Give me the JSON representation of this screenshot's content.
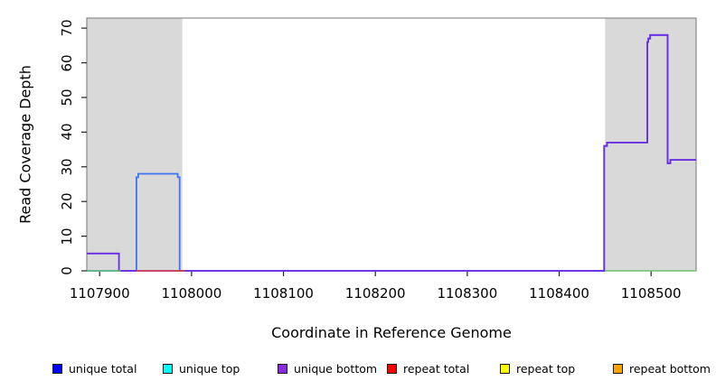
{
  "chart_data": {
    "type": "line",
    "title": "",
    "xlabel": "Coordinate in Reference Genome",
    "ylabel": "Read Coverage Depth",
    "xlim": [
      1107886,
      1108549
    ],
    "ylim": [
      0,
      72.9
    ],
    "x_ticks": [
      1107900,
      1108000,
      1108100,
      1108200,
      1108300,
      1108400,
      1108500
    ],
    "y_ticks": [
      0,
      10,
      20,
      30,
      40,
      50,
      60,
      70
    ],
    "grid": false,
    "frame_color": "#777777",
    "shaded_region_color": "#d9d9d9",
    "shaded_regions": [
      {
        "x0": 1107886,
        "x1": 1107990
      },
      {
        "x0": 1108450,
        "x1": 1108549
      }
    ],
    "series": [
      {
        "name": "unique total",
        "color": "#3e74f0",
        "width": 1.8,
        "segments": [
          [
            [
              1107886,
              0
            ],
            [
              1107940,
              0
            ],
            [
              1107940,
              27
            ],
            [
              1107942,
              27
            ],
            [
              1107942,
              28
            ],
            [
              1107985,
              28
            ],
            [
              1107985,
              27
            ],
            [
              1107987,
              27
            ],
            [
              1107987,
              0
            ],
            [
              1108449,
              0
            ],
            [
              1108449,
              36
            ],
            [
              1108452,
              36
            ],
            [
              1108452,
              37
            ],
            [
              1108496,
              37
            ],
            [
              1108496,
              66
            ],
            [
              1108497,
              66
            ],
            [
              1108497,
              67
            ],
            [
              1108499,
              67
            ],
            [
              1108499,
              68
            ],
            [
              1108518,
              68
            ],
            [
              1108518,
              31
            ],
            [
              1108521,
              31
            ],
            [
              1108521,
              32
            ],
            [
              1108549,
              32
            ]
          ]
        ]
      },
      {
        "name": "unique bottom",
        "color": "#6c2be2",
        "width": 1.8,
        "segments": [
          [
            [
              1107886,
              5
            ],
            [
              1107921,
              5
            ],
            [
              1107921,
              0
            ],
            [
              1108449,
              0
            ],
            [
              1108449,
              36
            ],
            [
              1108452,
              36
            ],
            [
              1108452,
              37
            ],
            [
              1108496,
              37
            ],
            [
              1108496,
              66
            ],
            [
              1108497,
              66
            ],
            [
              1108497,
              67
            ],
            [
              1108499,
              67
            ],
            [
              1108499,
              68
            ],
            [
              1108518,
              68
            ],
            [
              1108518,
              31
            ],
            [
              1108521,
              31
            ],
            [
              1108521,
              32
            ],
            [
              1108549,
              32
            ]
          ]
        ]
      },
      {
        "name": "baseline green",
        "color": "#6cc06c",
        "width": 1.5,
        "segments": [
          [
            [
              1107886,
              0
            ],
            [
              1107923,
              0
            ]
          ],
          [
            [
              1108450,
              0
            ],
            [
              1108549,
              0
            ]
          ]
        ]
      },
      {
        "name": "repeat total",
        "color": "#e04040",
        "width": 1.5,
        "segments": [
          [
            [
              1107940,
              0
            ],
            [
              1107993,
              0
            ]
          ]
        ]
      }
    ],
    "legend": [
      {
        "label": "unique total",
        "color": "#0000ff"
      },
      {
        "label": "unique top",
        "color": "#00ffff"
      },
      {
        "label": "unique bottom",
        "color": "#8a2be2"
      },
      {
        "label": "repeat total",
        "color": "#ff0000"
      },
      {
        "label": "repeat top",
        "color": "#ffff00"
      },
      {
        "label": "repeat bottom",
        "color": "#ffa500"
      }
    ],
    "legend_position": "bottom"
  }
}
